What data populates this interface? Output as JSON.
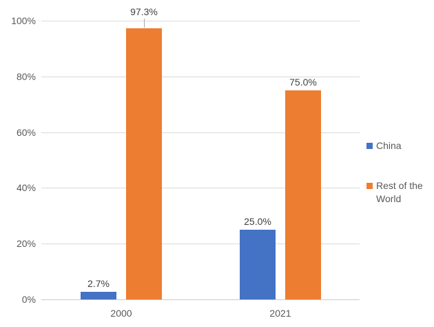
{
  "chart_data": {
    "type": "bar",
    "title": "",
    "categories": [
      "2000",
      "2021"
    ],
    "series": [
      {
        "name": "China",
        "color": "#4472C4",
        "values": [
          2.7,
          25.0
        ],
        "labels": [
          "2.7%",
          "25.0%"
        ],
        "leader_points": []
      },
      {
        "name": "Rest of the World",
        "color": "#ED7D31",
        "values": [
          97.3,
          75.0
        ],
        "labels": [
          "97.3%",
          "75.0%"
        ],
        "leader_points": [
          0
        ]
      }
    ],
    "y_axis": {
      "min": 0,
      "max": 100,
      "step": 20,
      "tick_labels": [
        "0%",
        "20%",
        "40%",
        "60%",
        "80%",
        "100%"
      ]
    },
    "grid": true,
    "legend_position": "right"
  },
  "colors": {
    "background": "#ffffff",
    "gridline": "#D9D9D9",
    "axis_line": "#C9C9C9",
    "tick_text": "#595959",
    "category_text": "#595959",
    "legend_text": "#595959",
    "data_label_text": "#404040",
    "leader_line": "#A6A6A6"
  }
}
